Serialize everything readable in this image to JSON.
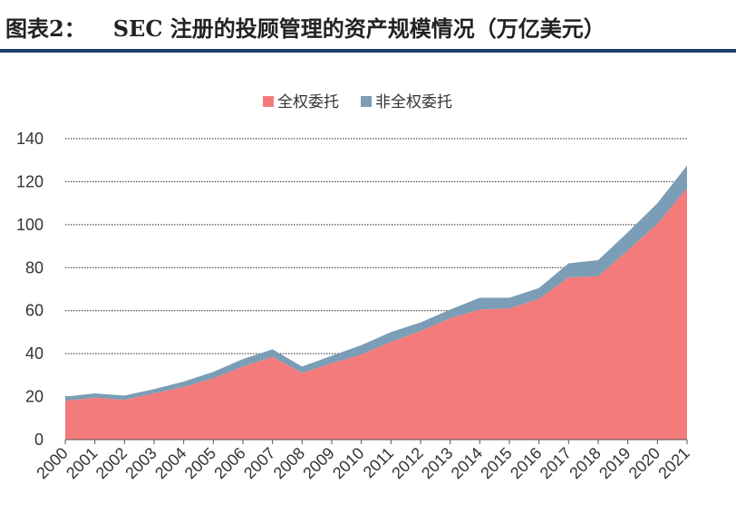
{
  "figure": {
    "label": "图表2：",
    "title": "SEC 注册的投顾管理的资产规模情况（万亿美元）"
  },
  "chart_data": {
    "type": "area",
    "stacked": true,
    "title": "",
    "xlabel": "",
    "ylabel": "",
    "ylim": [
      0,
      140
    ],
    "yticks": [
      0,
      20,
      40,
      60,
      80,
      100,
      120,
      140
    ],
    "grid": true,
    "legend_position": "top-center",
    "x": [
      "2000",
      "2001",
      "2002",
      "2003",
      "2004",
      "2005",
      "2006",
      "2007",
      "2008",
      "2009",
      "2010",
      "2011",
      "2012",
      "2013",
      "2014",
      "2015",
      "2016",
      "2017",
      "2018",
      "2019",
      "2020",
      "2021"
    ],
    "series": [
      {
        "name": "全权委托",
        "color": "#f47b7b",
        "values": [
          18,
          19.5,
          18.5,
          21.5,
          24.5,
          28.5,
          34,
          38.5,
          31,
          35.5,
          39.5,
          45.5,
          50.5,
          56.5,
          60.5,
          61,
          65.5,
          75.5,
          76,
          88,
          100.5,
          117
        ]
      },
      {
        "name": "非全权委托",
        "color": "#7b9db6",
        "values": [
          2,
          2,
          2,
          2,
          2.5,
          3,
          3.5,
          3.5,
          3,
          3.5,
          4.5,
          4.5,
          4,
          4,
          5.5,
          5,
          5,
          6.5,
          7.5,
          8.5,
          9.5,
          10.5
        ]
      }
    ]
  }
}
